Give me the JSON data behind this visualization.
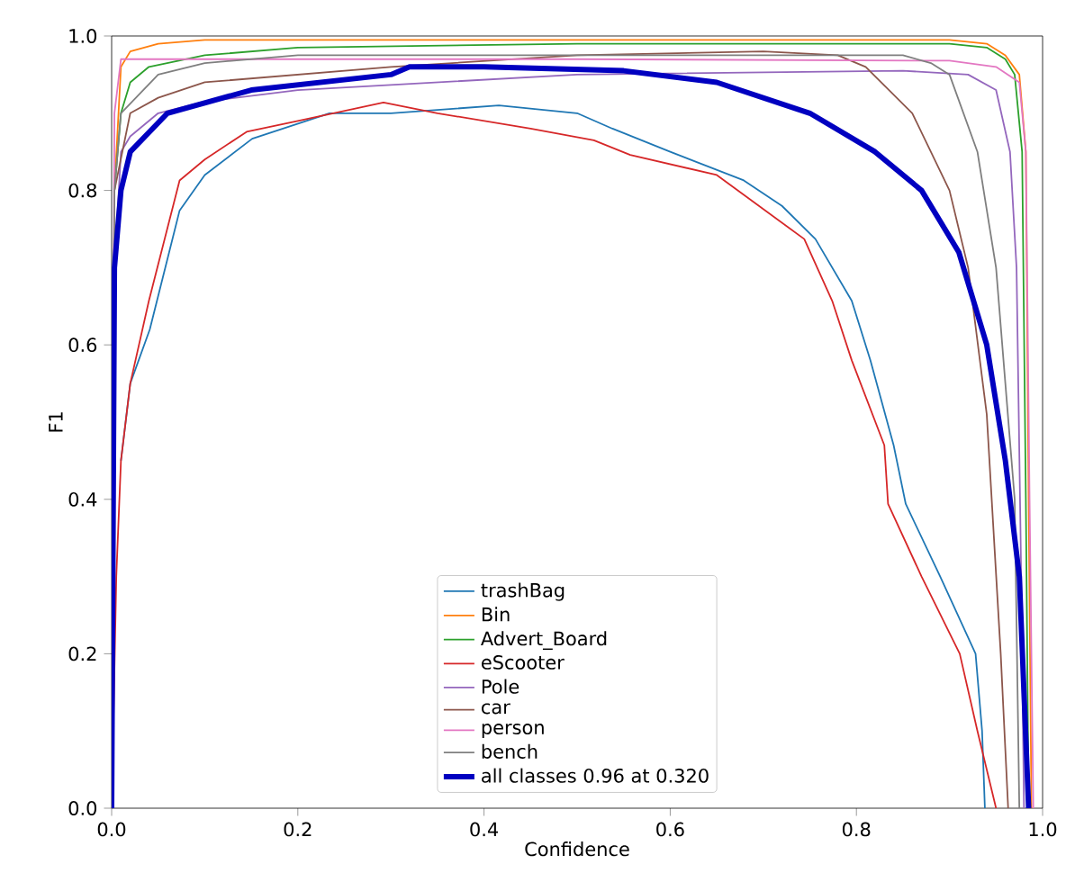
{
  "chart_data": {
    "type": "line",
    "xlabel": "Confidence",
    "ylabel": "F1",
    "xlim": [
      0,
      1
    ],
    "ylim": [
      0,
      1
    ],
    "xticks": [
      {
        "value": 0,
        "label": "0.0"
      },
      {
        "value": 0.2,
        "label": "0.2"
      },
      {
        "value": 0.4,
        "label": "0.4"
      },
      {
        "value": 0.6,
        "label": "0.6"
      },
      {
        "value": 0.8,
        "label": "0.8"
      },
      {
        "value": 1,
        "label": "1.0"
      }
    ],
    "yticks": [
      {
        "value": 0,
        "label": "0.0"
      },
      {
        "value": 0.2,
        "label": "0.2"
      },
      {
        "value": 0.4,
        "label": "0.4"
      },
      {
        "value": 0.6,
        "label": "0.6"
      },
      {
        "value": 0.8,
        "label": "0.8"
      },
      {
        "value": 1,
        "label": "1.0"
      }
    ],
    "grid": false,
    "legend": "bottom",
    "marker": "none",
    "line_style": "solid",
    "series": [
      {
        "name": "trashBag",
        "color": "#1f77b4",
        "x": [
          0.01,
          0.02,
          0.041,
          0.073,
          0.1,
          0.151,
          0.234,
          0.3,
          0.416,
          0.5,
          0.538,
          0.6,
          0.679,
          0.72,
          0.756,
          0.795,
          0.815,
          0.84,
          0.853,
          0.89,
          0.928,
          0.935,
          0.938
        ],
        "values": [
          0.45,
          0.55,
          0.62,
          0.774,
          0.82,
          0.867,
          0.9,
          0.9,
          0.91,
          0.9,
          0.88,
          0.85,
          0.813,
          0.78,
          0.737,
          0.657,
          0.58,
          0.47,
          0.394,
          0.3,
          0.2,
          0.1,
          0
        ]
      },
      {
        "name": "Bin",
        "color": "#ff7f0e",
        "x": [
          0,
          0.003,
          0.01,
          0.02,
          0.05,
          0.1,
          0.5,
          0.9,
          0.94,
          0.96,
          0.975,
          0.982,
          0.985,
          0.988
        ],
        "values": [
          0,
          0.8,
          0.96,
          0.98,
          0.99,
          0.995,
          0.995,
          0.995,
          0.99,
          0.975,
          0.95,
          0.85,
          0.4,
          0
        ]
      },
      {
        "name": "Advert_Board",
        "color": "#2ca02c",
        "x": [
          0,
          0.003,
          0.01,
          0.02,
          0.04,
          0.1,
          0.2,
          0.5,
          0.9,
          0.94,
          0.96,
          0.97,
          0.978,
          0.982,
          0.985
        ],
        "values": [
          0,
          0.8,
          0.9,
          0.94,
          0.96,
          0.975,
          0.985,
          0.99,
          0.99,
          0.985,
          0.97,
          0.95,
          0.85,
          0.4,
          0
        ]
      },
      {
        "name": "eScooter",
        "color": "#d62728",
        "x": [
          0,
          0.005,
          0.01,
          0.02,
          0.04,
          0.073,
          0.1,
          0.145,
          0.2,
          0.292,
          0.35,
          0.45,
          0.518,
          0.557,
          0.65,
          0.744,
          0.774,
          0.795,
          0.83,
          0.834,
          0.87,
          0.911,
          0.93,
          0.95
        ],
        "values": [
          0,
          0.3,
          0.45,
          0.55,
          0.657,
          0.813,
          0.84,
          0.876,
          0.89,
          0.914,
          0.9,
          0.88,
          0.865,
          0.846,
          0.82,
          0.737,
          0.657,
          0.58,
          0.47,
          0.394,
          0.3,
          0.2,
          0.1,
          0
        ]
      },
      {
        "name": "Pole",
        "color": "#9467bd",
        "x": [
          0,
          0.003,
          0.01,
          0.02,
          0.05,
          0.1,
          0.2,
          0.5,
          0.85,
          0.92,
          0.95,
          0.965,
          0.972,
          0.977,
          0.98
        ],
        "values": [
          0,
          0.7,
          0.85,
          0.87,
          0.9,
          0.915,
          0.93,
          0.95,
          0.955,
          0.95,
          0.93,
          0.85,
          0.7,
          0.3,
          0
        ]
      },
      {
        "name": "car",
        "color": "#8c564b",
        "x": [
          0,
          0.003,
          0.02,
          0.05,
          0.1,
          0.3,
          0.5,
          0.7,
          0.78,
          0.81,
          0.86,
          0.9,
          0.92,
          0.94,
          0.955,
          0.963
        ],
        "values": [
          0,
          0.8,
          0.9,
          0.92,
          0.94,
          0.96,
          0.975,
          0.98,
          0.975,
          0.96,
          0.9,
          0.8,
          0.7,
          0.51,
          0.2,
          0
        ]
      },
      {
        "name": "person",
        "color": "#e377c2",
        "x": [
          0,
          0.003,
          0.01,
          0.1,
          0.5,
          0.9,
          0.95,
          0.975,
          0.982,
          0.986,
          0.99
        ],
        "values": [
          0,
          0.9,
          0.97,
          0.97,
          0.97,
          0.968,
          0.96,
          0.94,
          0.85,
          0.4,
          0
        ]
      },
      {
        "name": "bench",
        "color": "#7f7f7f",
        "x": [
          0,
          0.003,
          0.01,
          0.05,
          0.1,
          0.2,
          0.5,
          0.85,
          0.88,
          0.9,
          0.93,
          0.95,
          0.96,
          0.97,
          0.975
        ],
        "values": [
          0,
          0.8,
          0.9,
          0.95,
          0.965,
          0.975,
          0.975,
          0.975,
          0.965,
          0.95,
          0.85,
          0.7,
          0.55,
          0.4,
          0
        ]
      },
      {
        "name": "all classes 0.96 at 0.320",
        "color": "#0000c0",
        "x": [
          0,
          0.003,
          0.01,
          0.02,
          0.06,
          0.15,
          0.3,
          0.32,
          0.4,
          0.55,
          0.65,
          0.75,
          0.82,
          0.87,
          0.91,
          0.94,
          0.96,
          0.975,
          0.985
        ],
        "values": [
          0,
          0.7,
          0.8,
          0.85,
          0.9,
          0.93,
          0.95,
          0.96,
          0.96,
          0.955,
          0.94,
          0.9,
          0.85,
          0.8,
          0.72,
          0.6,
          0.45,
          0.3,
          0
        ]
      }
    ]
  }
}
